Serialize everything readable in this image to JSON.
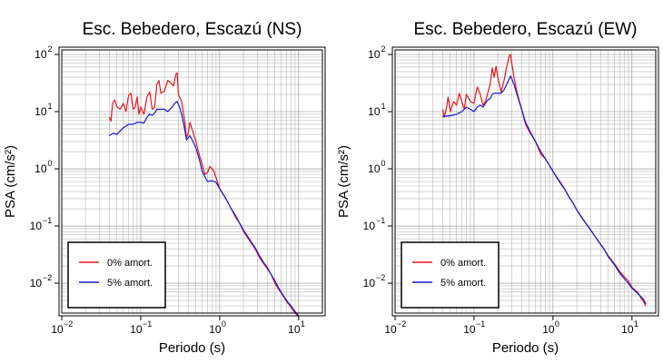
{
  "chart_data": [
    {
      "type": "line",
      "title": "Esc. Bebedero, Escazú (NS)",
      "xlabel": "Periodo (s)",
      "ylabel": "PSA (cm/s²)",
      "x_scale": "log",
      "y_scale": "log",
      "xlim": [
        0.01,
        20
      ],
      "ylim": [
        0.003,
        120
      ],
      "grid": true,
      "legend_position": "bottom-left",
      "x_ticks": [
        {
          "value": 0.01,
          "base": "10",
          "exp": "−2"
        },
        {
          "value": 0.1,
          "base": "10",
          "exp": "−1"
        },
        {
          "value": 1,
          "base": "10",
          "exp": "0"
        },
        {
          "value": 10,
          "base": "10",
          "exp": "1"
        }
      ],
      "y_ticks": [
        {
          "value": 0.01,
          "base": "10",
          "exp": "−2"
        },
        {
          "value": 0.1,
          "base": "10",
          "exp": "−1"
        },
        {
          "value": 1,
          "base": "10",
          "exp": "0"
        },
        {
          "value": 10,
          "base": "10",
          "exp": "1"
        },
        {
          "value": 100,
          "base": "10",
          "exp": "2"
        }
      ],
      "series": [
        {
          "name": "0% amort.",
          "color": "#e8141c",
          "points": [
            [
              0.04,
              8
            ],
            [
              0.042,
              6.8
            ],
            [
              0.044,
              14
            ],
            [
              0.047,
              16
            ],
            [
              0.05,
              12
            ],
            [
              0.055,
              11
            ],
            [
              0.06,
              14
            ],
            [
              0.065,
              10
            ],
            [
              0.07,
              19
            ],
            [
              0.075,
              21
            ],
            [
              0.08,
              11
            ],
            [
              0.085,
              12
            ],
            [
              0.09,
              18
            ],
            [
              0.095,
              9
            ],
            [
              0.1,
              12
            ],
            [
              0.11,
              9
            ],
            [
              0.12,
              18
            ],
            [
              0.13,
              22
            ],
            [
              0.14,
              11
            ],
            [
              0.15,
              12
            ],
            [
              0.16,
              30
            ],
            [
              0.17,
              35
            ],
            [
              0.18,
              21
            ],
            [
              0.2,
              23
            ],
            [
              0.22,
              35
            ],
            [
              0.24,
              32
            ],
            [
              0.26,
              28
            ],
            [
              0.28,
              45
            ],
            [
              0.29,
              48
            ],
            [
              0.3,
              20
            ],
            [
              0.33,
              15
            ],
            [
              0.36,
              7
            ],
            [
              0.38,
              3.5
            ],
            [
              0.4,
              4.2
            ],
            [
              0.42,
              6.5
            ],
            [
              0.45,
              4.8
            ],
            [
              0.5,
              3
            ],
            [
              0.55,
              1.8
            ],
            [
              0.6,
              1.2
            ],
            [
              0.65,
              0.8
            ],
            [
              0.7,
              0.85
            ],
            [
              0.75,
              1.1
            ],
            [
              0.8,
              1
            ],
            [
              0.85,
              0.9
            ],
            [
              0.9,
              0.7
            ],
            [
              1,
              0.45
            ],
            [
              1.2,
              0.3
            ],
            [
              1.4,
              0.2
            ],
            [
              1.6,
              0.14
            ],
            [
              1.8,
              0.11
            ],
            [
              2,
              0.08
            ],
            [
              2.4,
              0.055
            ],
            [
              2.8,
              0.04
            ],
            [
              3.2,
              0.028
            ],
            [
              3.6,
              0.022
            ],
            [
              4,
              0.018
            ],
            [
              4.5,
              0.014
            ],
            [
              5,
              0.01
            ],
            [
              5.5,
              0.008
            ],
            [
              6,
              0.0068
            ],
            [
              7,
              0.0048
            ],
            [
              8,
              0.0038
            ],
            [
              9,
              0.003
            ],
            [
              10,
              0.0026
            ]
          ]
        },
        {
          "name": "5% amort.",
          "color": "#1515d8",
          "points": [
            [
              0.04,
              3.8
            ],
            [
              0.045,
              4.2
            ],
            [
              0.05,
              4
            ],
            [
              0.055,
              4.6
            ],
            [
              0.06,
              5.2
            ],
            [
              0.07,
              6
            ],
            [
              0.08,
              6
            ],
            [
              0.09,
              6.5
            ],
            [
              0.1,
              6.5
            ],
            [
              0.11,
              6.3
            ],
            [
              0.12,
              8
            ],
            [
              0.13,
              9
            ],
            [
              0.14,
              8.6
            ],
            [
              0.15,
              9.5
            ],
            [
              0.16,
              11
            ],
            [
              0.18,
              11
            ],
            [
              0.2,
              11
            ],
            [
              0.22,
              10
            ],
            [
              0.25,
              12
            ],
            [
              0.27,
              14
            ],
            [
              0.29,
              15
            ],
            [
              0.31,
              12
            ],
            [
              0.33,
              9
            ],
            [
              0.36,
              5
            ],
            [
              0.38,
              3.2
            ],
            [
              0.42,
              3.8
            ],
            [
              0.46,
              3
            ],
            [
              0.5,
              2.3
            ],
            [
              0.55,
              1.5
            ],
            [
              0.6,
              0.9
            ],
            [
              0.7,
              0.6
            ],
            [
              0.8,
              0.62
            ],
            [
              0.9,
              0.58
            ],
            [
              1,
              0.45
            ],
            [
              1.2,
              0.3
            ],
            [
              1.4,
              0.2
            ],
            [
              1.6,
              0.15
            ],
            [
              1.8,
              0.11
            ],
            [
              2,
              0.085
            ],
            [
              2.4,
              0.058
            ],
            [
              2.8,
              0.042
            ],
            [
              3.2,
              0.03
            ],
            [
              3.6,
              0.023
            ],
            [
              4,
              0.019
            ],
            [
              4.5,
              0.014
            ],
            [
              5,
              0.011
            ],
            [
              5.5,
              0.0085
            ],
            [
              6,
              0.007
            ],
            [
              7,
              0.005
            ],
            [
              8,
              0.004
            ],
            [
              9,
              0.0032
            ],
            [
              10,
              0.0027
            ]
          ]
        }
      ]
    },
    {
      "type": "line",
      "title": "Esc. Bebedero, Escazú (EW)",
      "xlabel": "Periodo (s)",
      "ylabel": "PSA (cm/s²)",
      "x_scale": "log",
      "y_scale": "log",
      "xlim": [
        0.01,
        20
      ],
      "ylim": [
        0.003,
        120
      ],
      "grid": true,
      "legend_position": "bottom-left",
      "x_ticks": [
        {
          "value": 0.01,
          "base": "10",
          "exp": "−2"
        },
        {
          "value": 0.1,
          "base": "10",
          "exp": "−1"
        },
        {
          "value": 1,
          "base": "10",
          "exp": "0"
        },
        {
          "value": 10,
          "base": "10",
          "exp": "1"
        }
      ],
      "y_ticks": [
        {
          "value": 0.01,
          "base": "10",
          "exp": "−2"
        },
        {
          "value": 0.1,
          "base": "10",
          "exp": "−1"
        },
        {
          "value": 1,
          "base": "10",
          "exp": "0"
        },
        {
          "value": 10,
          "base": "10",
          "exp": "1"
        },
        {
          "value": 100,
          "base": "10",
          "exp": "2"
        }
      ],
      "series": [
        {
          "name": "0% amort.",
          "color": "#e8141c",
          "points": [
            [
              0.04,
              11
            ],
            [
              0.042,
              8
            ],
            [
              0.045,
              12
            ],
            [
              0.047,
              18
            ],
            [
              0.05,
              10
            ],
            [
              0.055,
              15
            ],
            [
              0.06,
              13
            ],
            [
              0.065,
              21
            ],
            [
              0.07,
              15
            ],
            [
              0.075,
              11
            ],
            [
              0.08,
              20
            ],
            [
              0.09,
              15
            ],
            [
              0.1,
              14
            ],
            [
              0.11,
              27
            ],
            [
              0.12,
              20
            ],
            [
              0.13,
              13
            ],
            [
              0.14,
              15
            ],
            [
              0.15,
              22
            ],
            [
              0.16,
              30
            ],
            [
              0.17,
              58
            ],
            [
              0.18,
              40
            ],
            [
              0.19,
              62
            ],
            [
              0.2,
              40
            ],
            [
              0.22,
              22
            ],
            [
              0.24,
              35
            ],
            [
              0.26,
              62
            ],
            [
              0.28,
              95
            ],
            [
              0.29,
              100
            ],
            [
              0.3,
              72
            ],
            [
              0.32,
              40
            ],
            [
              0.35,
              22
            ],
            [
              0.4,
              11
            ],
            [
              0.45,
              6
            ],
            [
              0.5,
              4.5
            ],
            [
              0.6,
              3
            ],
            [
              0.7,
              1.8
            ],
            [
              0.8,
              1.5
            ],
            [
              0.85,
              1.3
            ],
            [
              0.9,
              1.15
            ],
            [
              1,
              0.9
            ],
            [
              1.2,
              0.62
            ],
            [
              1.4,
              0.45
            ],
            [
              1.6,
              0.32
            ],
            [
              1.8,
              0.25
            ],
            [
              2,
              0.19
            ],
            [
              2.5,
              0.12
            ],
            [
              3,
              0.085
            ],
            [
              3.5,
              0.062
            ],
            [
              4,
              0.048
            ],
            [
              4.5,
              0.038
            ],
            [
              5,
              0.03
            ],
            [
              6,
              0.022
            ],
            [
              7,
              0.016
            ],
            [
              8,
              0.013
            ],
            [
              9,
              0.011
            ],
            [
              10,
              0.0085
            ],
            [
              11,
              0.0075
            ],
            [
              12,
              0.0068
            ],
            [
              13,
              0.0055
            ],
            [
              14,
              0.0048
            ],
            [
              15,
              0.004
            ]
          ]
        },
        {
          "name": "5% amort.",
          "color": "#1515d8",
          "points": [
            [
              0.04,
              8.2
            ],
            [
              0.05,
              8.5
            ],
            [
              0.06,
              9
            ],
            [
              0.07,
              10
            ],
            [
              0.08,
              12
            ],
            [
              0.09,
              11
            ],
            [
              0.1,
              10
            ],
            [
              0.11,
              12
            ],
            [
              0.12,
              13
            ],
            [
              0.13,
              12
            ],
            [
              0.14,
              14
            ],
            [
              0.15,
              16
            ],
            [
              0.16,
              17
            ],
            [
              0.17,
              20
            ],
            [
              0.18,
              21
            ],
            [
              0.2,
              21
            ],
            [
              0.22,
              21
            ],
            [
              0.24,
              24
            ],
            [
              0.26,
              30
            ],
            [
              0.28,
              38
            ],
            [
              0.29,
              42
            ],
            [
              0.3,
              38
            ],
            [
              0.32,
              30
            ],
            [
              0.35,
              20
            ],
            [
              0.4,
              11
            ],
            [
              0.45,
              6.5
            ],
            [
              0.5,
              4.8
            ],
            [
              0.6,
              3
            ],
            [
              0.7,
              2
            ],
            [
              0.8,
              1.5
            ],
            [
              0.9,
              1.15
            ],
            [
              1,
              0.9
            ],
            [
              1.2,
              0.6
            ],
            [
              1.4,
              0.44
            ],
            [
              1.6,
              0.32
            ],
            [
              1.8,
              0.25
            ],
            [
              2,
              0.19
            ],
            [
              2.5,
              0.12
            ],
            [
              3,
              0.085
            ],
            [
              3.5,
              0.062
            ],
            [
              4,
              0.048
            ],
            [
              4.5,
              0.038
            ],
            [
              5,
              0.029
            ],
            [
              6,
              0.021
            ],
            [
              7,
              0.015
            ],
            [
              8,
              0.012
            ],
            [
              9,
              0.01
            ],
            [
              10,
              0.0082
            ],
            [
              12,
              0.0065
            ],
            [
              14,
              0.0052
            ],
            [
              15,
              0.0043
            ]
          ]
        }
      ]
    }
  ]
}
